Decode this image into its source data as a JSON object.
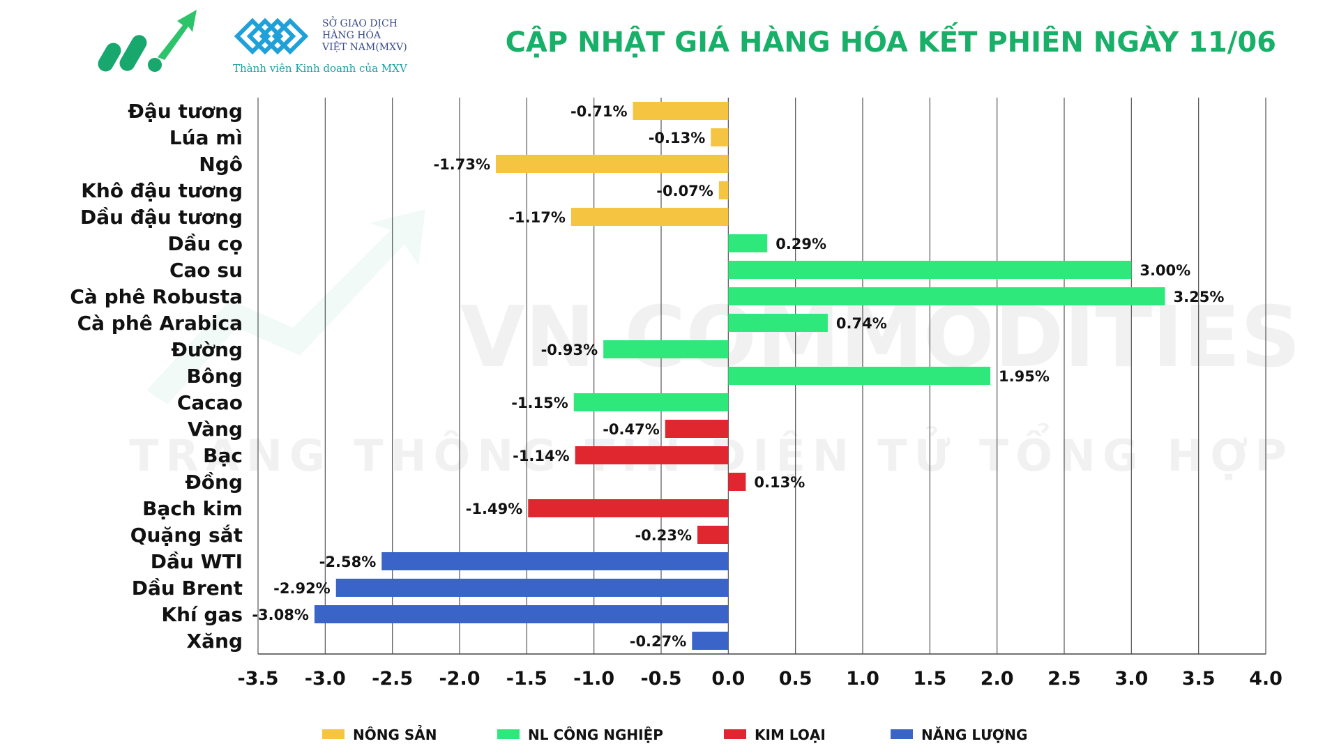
{
  "header": {
    "title": "CẬP NHẬT GIÁ HÀNG HÓA KẾT PHIÊN NGÀY 11/06",
    "exchange_line1": "SỞ GIAO DỊCH",
    "exchange_line2": "HÀNG HÓA",
    "exchange_line3": "VIỆT NAM(MXV)",
    "member_text": "Thành viên Kinh doanh của MXV"
  },
  "watermark": {
    "line1": "VN COMMODITIES",
    "line2": "TRANG THÔNG TIN ĐIỆN TỬ TỔNG HỢP"
  },
  "chart_data": {
    "type": "bar",
    "orientation": "horizontal",
    "title": "CẬP NHẬT GIÁ HÀNG HÓA KẾT PHIÊN NGÀY 11/06",
    "xlim": [
      -3.5,
      4.0
    ],
    "x_ticks": [
      "-3.5",
      "-3.0",
      "-2.5",
      "-2.0",
      "-1.5",
      "-1.0",
      "-0.5",
      "0.0",
      "0.5",
      "1.0",
      "1.5",
      "2.0",
      "2.5",
      "3.0",
      "3.5",
      "4.0"
    ],
    "grid": "vertical",
    "legend_position": "bottom",
    "groups": [
      {
        "name": "NÔNG SẢN",
        "color": "#f5c542"
      },
      {
        "name": "NL CÔNG NGHIỆP",
        "color": "#2ee87c"
      },
      {
        "name": "KIM LOẠI",
        "color": "#e0262f"
      },
      {
        "name": "NĂNG LƯỢNG",
        "color": "#3b64c8"
      }
    ],
    "items": [
      {
        "label": "Đậu tương",
        "value": -0.71,
        "text": "-0.71%",
        "group": 0
      },
      {
        "label": "Lúa mì",
        "value": -0.13,
        "text": "-0.13%",
        "group": 0
      },
      {
        "label": "Ngô",
        "value": -1.73,
        "text": "-1.73%",
        "group": 0
      },
      {
        "label": "Khô đậu tương",
        "value": -0.07,
        "text": "-0.07%",
        "group": 0
      },
      {
        "label": "Dầu đậu tương",
        "value": -1.17,
        "text": "-1.17%",
        "group": 0
      },
      {
        "label": "Dầu cọ",
        "value": 0.29,
        "text": "0.29%",
        "group": 1
      },
      {
        "label": "Cao su",
        "value": 3.0,
        "text": "3.00%",
        "group": 1
      },
      {
        "label": "Cà phê Robusta",
        "value": 3.25,
        "text": "3.25%",
        "group": 1
      },
      {
        "label": "Cà phê Arabica",
        "value": 0.74,
        "text": "0.74%",
        "group": 1
      },
      {
        "label": "Đường",
        "value": -0.93,
        "text": "-0.93%",
        "group": 1
      },
      {
        "label": "Bông",
        "value": 1.95,
        "text": "1.95%",
        "group": 1
      },
      {
        "label": "Cacao",
        "value": -1.15,
        "text": "-1.15%",
        "group": 1
      },
      {
        "label": "Vàng",
        "value": -0.47,
        "text": "-0.47%",
        "group": 2
      },
      {
        "label": "Bạc",
        "value": -1.14,
        "text": "-1.14%",
        "group": 2
      },
      {
        "label": "Đồng",
        "value": 0.13,
        "text": "0.13%",
        "group": 2
      },
      {
        "label": "Bạch kim",
        "value": -1.49,
        "text": "-1.49%",
        "group": 2
      },
      {
        "label": "Quặng sắt",
        "value": -0.23,
        "text": "-0.23%",
        "group": 2
      },
      {
        "label": "Dầu WTI",
        "value": -2.58,
        "text": "-2.58%",
        "group": 3
      },
      {
        "label": "Dầu Brent",
        "value": -2.92,
        "text": "-2.92%",
        "group": 3
      },
      {
        "label": "Khí gas",
        "value": -3.08,
        "text": "-3.08%",
        "group": 3
      },
      {
        "label": "Xăng",
        "value": -0.27,
        "text": "-0.27%",
        "group": 3
      }
    ]
  }
}
